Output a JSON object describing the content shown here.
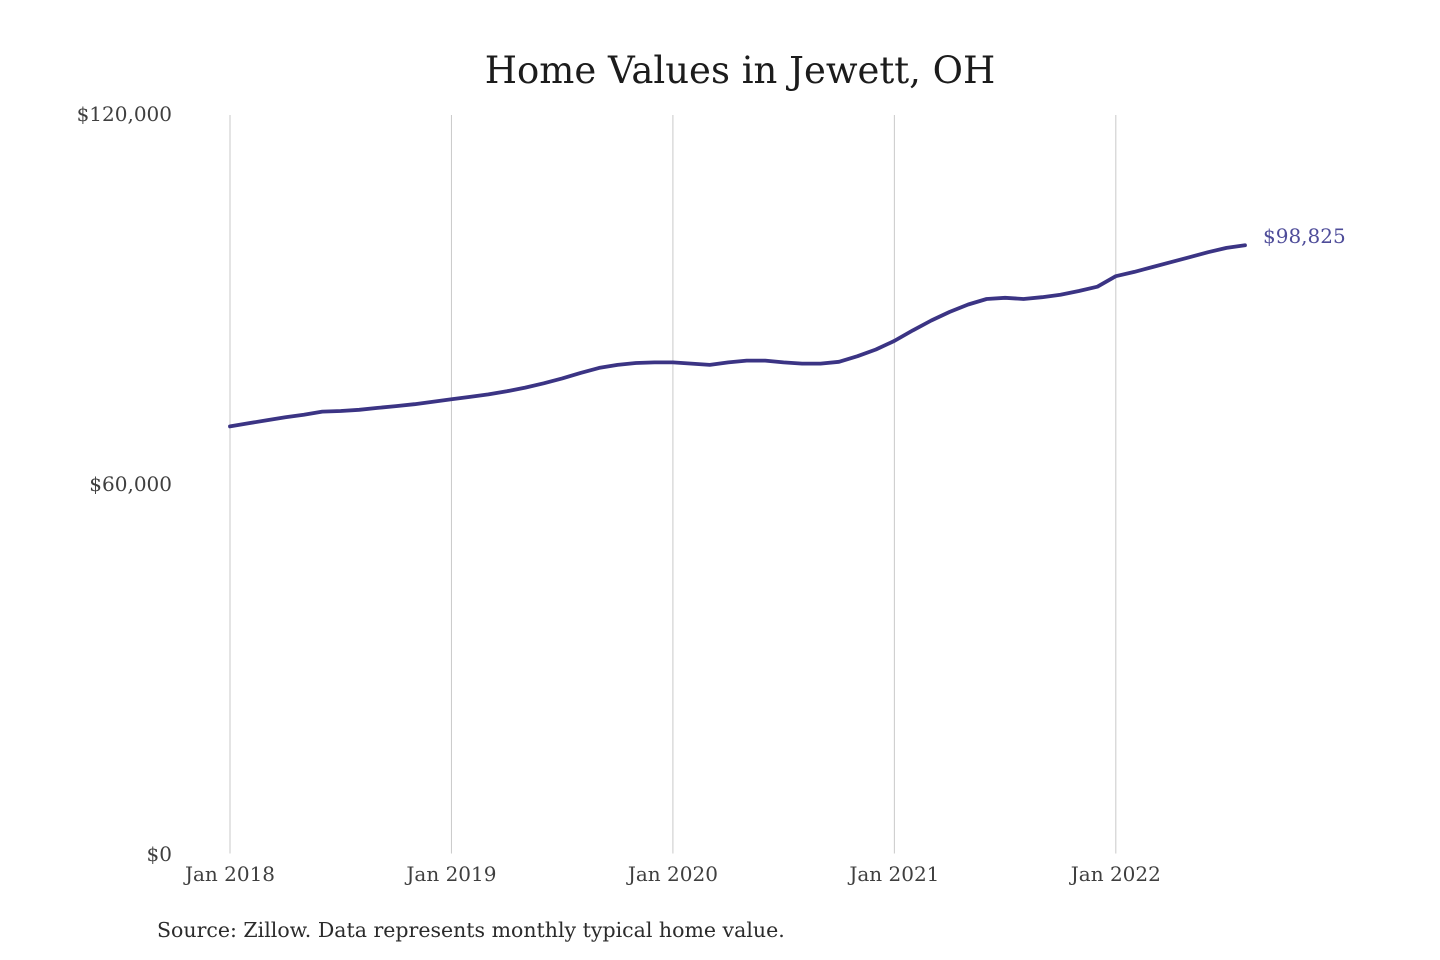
{
  "chart_data": {
    "type": "line",
    "title": "Home Values in Jewett, OH",
    "source_note": "Source: Zillow. Data represents monthly typical home value.",
    "end_label": "$98,825",
    "end_value": 98825,
    "line_color": "#3b3484",
    "end_label_color": "#4e4c99",
    "grid": "vertical-only",
    "legend": "none",
    "ylim": [
      0,
      120000
    ],
    "y_ticks": [
      {
        "label": "$0",
        "value": 0
      },
      {
        "label": "$60,000",
        "value": 60000
      },
      {
        "label": "$120,000",
        "value": 120000
      }
    ],
    "x_ticks": [
      {
        "label": "Jan 2018",
        "month_index": 0
      },
      {
        "label": "Jan 2019",
        "month_index": 12
      },
      {
        "label": "Jan 2020",
        "month_index": 24
      },
      {
        "label": "Jan 2021",
        "month_index": 36
      },
      {
        "label": "Jan 2022",
        "month_index": 48
      }
    ],
    "x": [
      "2018-01",
      "2018-02",
      "2018-03",
      "2018-04",
      "2018-05",
      "2018-06",
      "2018-07",
      "2018-08",
      "2018-09",
      "2018-10",
      "2018-11",
      "2018-12",
      "2019-01",
      "2019-02",
      "2019-03",
      "2019-04",
      "2019-05",
      "2019-06",
      "2019-07",
      "2019-08",
      "2019-09",
      "2019-10",
      "2019-11",
      "2019-12",
      "2020-01",
      "2020-02",
      "2020-03",
      "2020-04",
      "2020-05",
      "2020-06",
      "2020-07",
      "2020-08",
      "2020-09",
      "2020-10",
      "2020-11",
      "2020-12",
      "2021-01",
      "2021-02",
      "2021-03",
      "2021-04",
      "2021-05",
      "2021-06",
      "2021-07",
      "2021-08",
      "2021-09",
      "2021-10",
      "2021-11",
      "2021-12",
      "2022-01",
      "2022-02",
      "2022-03",
      "2022-04",
      "2022-05",
      "2022-06",
      "2022-07",
      "2022-08"
    ],
    "values": [
      69400,
      69900,
      70400,
      70900,
      71300,
      71800,
      71900,
      72100,
      72400,
      72700,
      73000,
      73400,
      73800,
      74200,
      74600,
      75100,
      75700,
      76400,
      77200,
      78100,
      78900,
      79400,
      79700,
      79800,
      79800,
      79600,
      79400,
      79800,
      80100,
      80100,
      79800,
      79600,
      79600,
      79900,
      80800,
      81900,
      83300,
      85000,
      86600,
      88000,
      89200,
      90100,
      90300,
      90100,
      90400,
      90800,
      91400,
      92100,
      93800,
      94500,
      95300,
      96100,
      96900,
      97700,
      98400,
      98825
    ]
  }
}
